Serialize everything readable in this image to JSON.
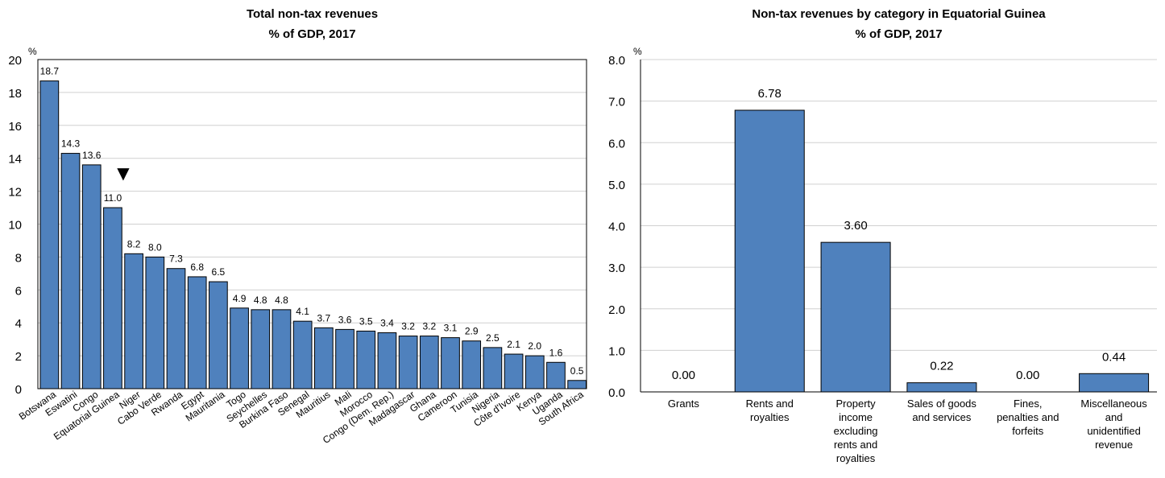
{
  "chart_data": [
    {
      "type": "bar",
      "title": "Total non-tax revenues",
      "subtitle": "% of GDP, 2017",
      "unit": "%",
      "ylim": [
        0,
        20
      ],
      "yticks": [
        0,
        2,
        4,
        6,
        8,
        10,
        12,
        14,
        16,
        18,
        20
      ],
      "grid": true,
      "highlight_marker": "▼",
      "highlight_category": "Equatorial Guinea",
      "bar_color": "#4f81bd",
      "categories": [
        "Botswana",
        "Eswatini",
        "Congo",
        "Equatorial Guinea",
        "Niger",
        "Cabo Verde",
        "Rwanda",
        "Egypt",
        "Mauritania",
        "Togo",
        "Seychelles",
        "Burkina Faso",
        "Senegal",
        "Mauritius",
        "Mali",
        "Morocco",
        "Congo (Dem. Rep.)",
        "Madagascar",
        "Ghana",
        "Cameroon",
        "Tunisia",
        "Nigeria",
        "Côte d'Ivoire",
        "Kenya",
        "Uganda",
        "South Africa"
      ],
      "values": [
        18.7,
        14.3,
        13.6,
        11.0,
        8.2,
        8.0,
        7.3,
        6.8,
        6.5,
        4.9,
        4.8,
        4.8,
        4.1,
        3.7,
        3.6,
        3.5,
        3.4,
        3.2,
        3.2,
        3.1,
        2.9,
        2.5,
        2.1,
        2.0,
        1.6,
        0.5
      ],
      "labels": [
        "18.7",
        "14.3",
        "13.6",
        "11.0",
        "8.2",
        "8.0",
        "7.3",
        "6.8",
        "6.5",
        "4.9",
        "4.8",
        "4.8",
        "4.1",
        "3.7",
        "3.6",
        "3.5",
        "3.4",
        "3.2",
        "3.2",
        "3.1",
        "2.9",
        "2.5",
        "2.1",
        "2.0",
        "1.6",
        "0.5"
      ]
    },
    {
      "type": "bar",
      "title": "Non-tax revenues by category in Equatorial Guinea",
      "subtitle": "% of GDP, 2017",
      "unit": "%",
      "ylim": [
        0,
        8
      ],
      "yticks": [
        "0.0",
        "1.0",
        "2.0",
        "3.0",
        "4.0",
        "5.0",
        "6.0",
        "7.0",
        "8.0"
      ],
      "grid": true,
      "bar_color": "#4f81bd",
      "categories": [
        [
          "Grants"
        ],
        [
          "Rents and",
          "royalties"
        ],
        [
          "Property",
          "income",
          "excluding",
          "rents and",
          "royalties"
        ],
        [
          "Sales of goods",
          "and services"
        ],
        [
          "Fines,",
          "penalties and",
          "forfeits"
        ],
        [
          "Miscellaneous",
          "and",
          "unidentified",
          "revenue"
        ]
      ],
      "values": [
        0.0,
        6.78,
        3.6,
        0.22,
        0.0,
        0.44
      ],
      "labels": [
        "0.00",
        "6.78",
        "3.60",
        "0.22",
        "0.00",
        "0.44"
      ]
    }
  ]
}
